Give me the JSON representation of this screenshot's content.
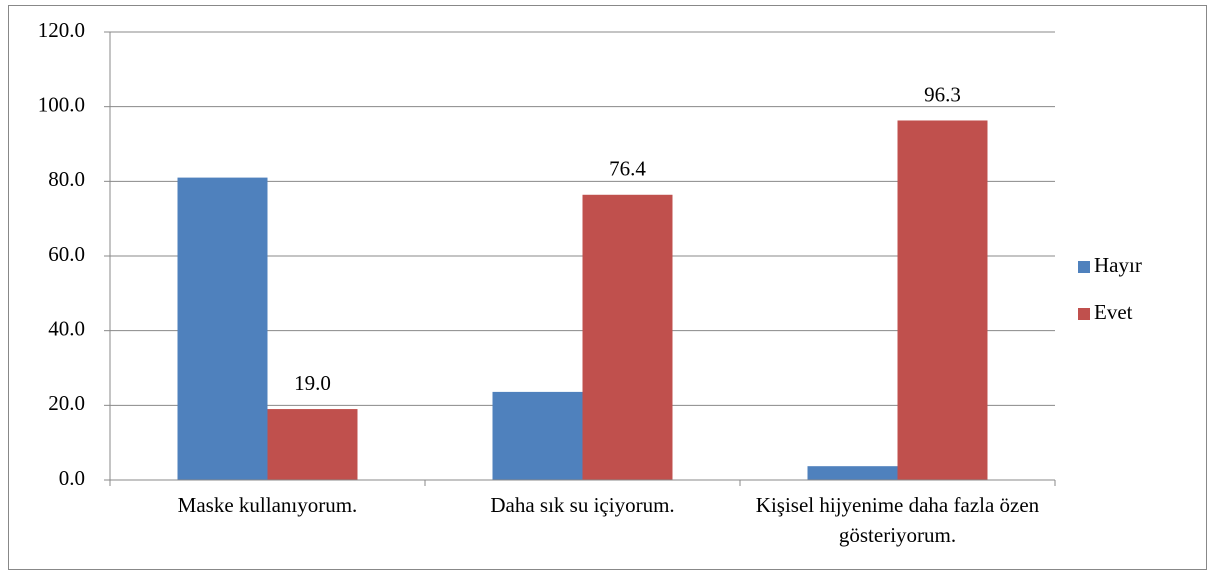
{
  "chart_data": {
    "type": "bar",
    "categories": [
      "Maske kullanıyorum.",
      "Daha sık su içiyorum.",
      "Kişisel hijyenime daha fazla özen gösteriyorum."
    ],
    "series": [
      {
        "name": "Hayır",
        "color": "#4f81bd",
        "values": [
          81.0,
          23.6,
          3.7
        ]
      },
      {
        "name": "Evet",
        "color": "#c0504d",
        "values": [
          19.0,
          76.4,
          96.3
        ],
        "value_labels": [
          "19.0",
          "76.4",
          "96.3"
        ]
      }
    ],
    "ylim": [
      0,
      120
    ],
    "yticks": [
      {
        "value": 0,
        "label": "0.0"
      },
      {
        "value": 20,
        "label": "20.0"
      },
      {
        "value": 40,
        "label": "40.0"
      },
      {
        "value": 60,
        "label": "60.0"
      },
      {
        "value": 80,
        "label": "80.0"
      },
      {
        "value": 100,
        "label": "100.0"
      },
      {
        "value": 120,
        "label": "120.0"
      }
    ],
    "grid": true,
    "legend": "right"
  }
}
